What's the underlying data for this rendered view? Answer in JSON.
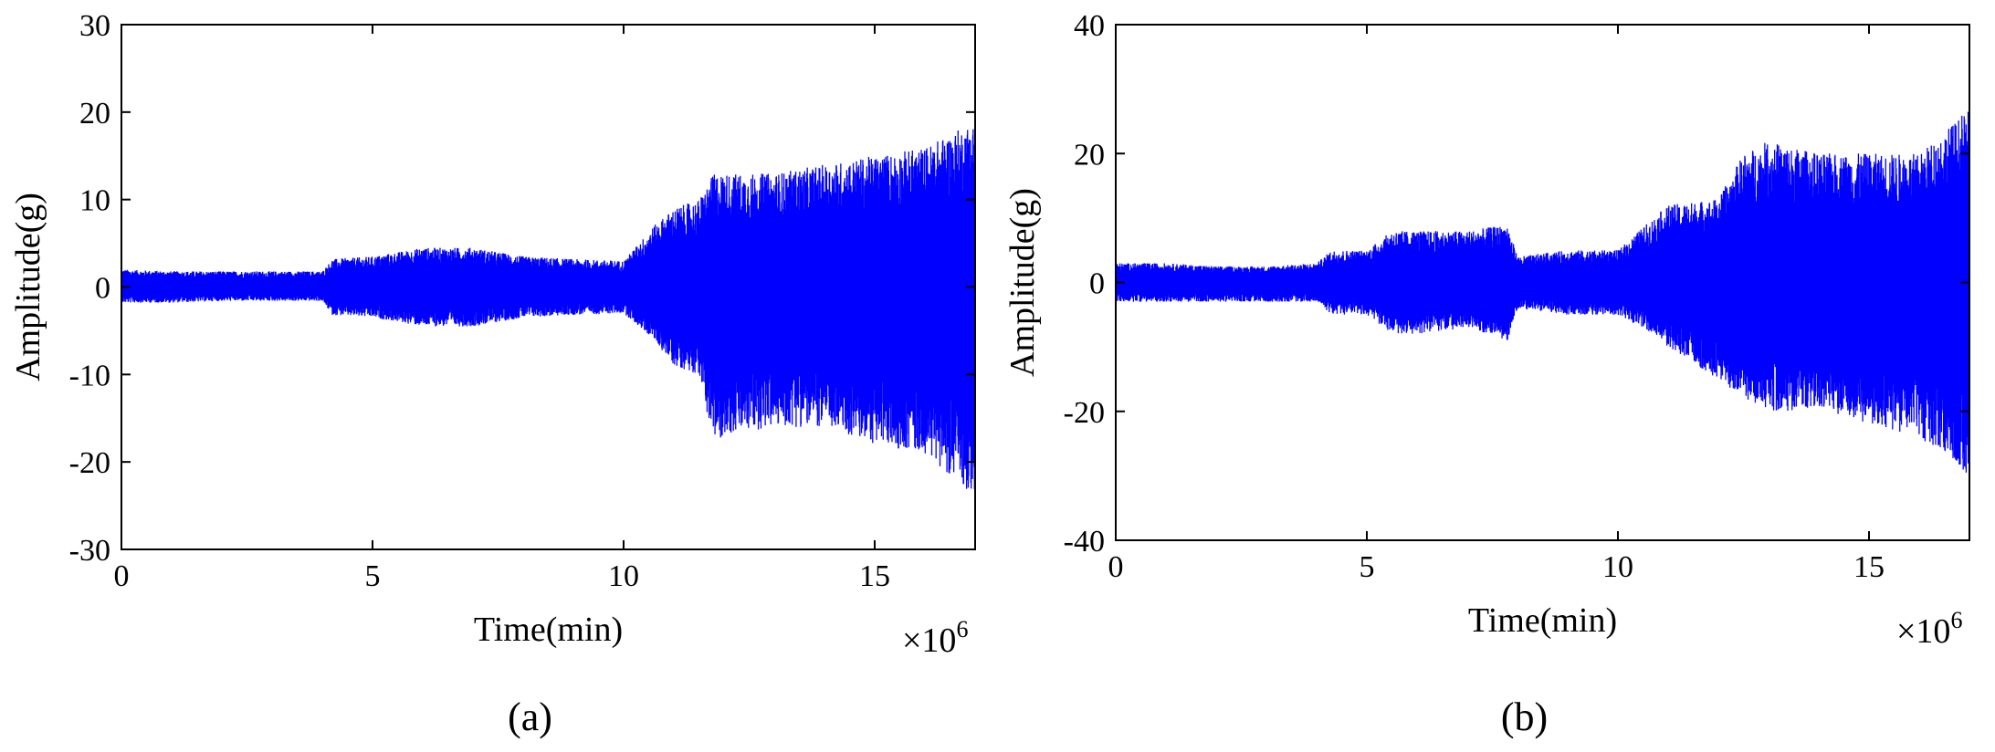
{
  "chart_data": [
    {
      "type": "line",
      "panel_label": "(a)",
      "xlabel": "Time(min)",
      "ylabel": "Amplitude(g)",
      "x_multiplier": "×10",
      "x_multiplier_exp": "6",
      "xlim": [
        0,
        17
      ],
      "ylim": [
        -30,
        30
      ],
      "x_ticks": [
        0,
        5,
        10,
        15
      ],
      "x_tick_labels": [
        "0",
        "5",
        "10",
        "15"
      ],
      "y_ticks": [
        -30,
        -20,
        -10,
        0,
        10,
        20,
        30
      ],
      "y_tick_labels": [
        "-30",
        "-20",
        "-10",
        "0",
        "10",
        "20",
        "30"
      ],
      "series_color": "#0000ff",
      "envelope": {
        "x": [
          0,
          1,
          2,
          3,
          4,
          4.2,
          5,
          6,
          7,
          8,
          9,
          10,
          10.6,
          11,
          11.5,
          11.8,
          12,
          13,
          14,
          15,
          16,
          17
        ],
        "upper": [
          2,
          1.8,
          1.8,
          1.8,
          1.8,
          3.2,
          3.5,
          4.5,
          4.5,
          3.5,
          3.2,
          3,
          7,
          9,
          10,
          13,
          13,
          13,
          14,
          15,
          16,
          19
        ],
        "lower": [
          -1.8,
          -1.8,
          -1.6,
          -1.6,
          -1.6,
          -3.2,
          -3.5,
          -4.5,
          -4.5,
          -3.5,
          -3.2,
          -3,
          -6,
          -9,
          -10,
          -18,
          -17,
          -16,
          -16,
          -18,
          -19,
          -24
        ]
      }
    },
    {
      "type": "line",
      "panel_label": "(b)",
      "xlabel": "Time(min)",
      "ylabel": "Amplitude(g)",
      "x_multiplier": "×10",
      "x_multiplier_exp": "6",
      "xlim": [
        0,
        17
      ],
      "ylim": [
        -40,
        40
      ],
      "x_ticks": [
        0,
        5,
        10,
        15
      ],
      "x_tick_labels": [
        "0",
        "5",
        "10",
        "15"
      ],
      "y_ticks": [
        -40,
        -20,
        0,
        20,
        40
      ],
      "y_tick_labels": [
        "-40",
        "-20",
        "0",
        "20",
        "40"
      ],
      "series_color": "#0000ff",
      "envelope": {
        "x": [
          0,
          1,
          2,
          3,
          4,
          4.3,
          5,
          5.5,
          6,
          7,
          7.8,
          8,
          9,
          10,
          10.7,
          11,
          12,
          12.5,
          13,
          14,
          15,
          16,
          17
        ],
        "upper": [
          3,
          3,
          2.5,
          2.5,
          3,
          5,
          5,
          8,
          8,
          8,
          9,
          4,
          5,
          5,
          10,
          12,
          13,
          20,
          22,
          20,
          20,
          20,
          27
        ],
        "lower": [
          -3,
          -3,
          -3,
          -3,
          -3,
          -5,
          -5,
          -8,
          -8,
          -7,
          -9,
          -4,
          -5,
          -5,
          -8,
          -10,
          -15,
          -18,
          -20,
          -20,
          -22,
          -24,
          -30
        ]
      }
    }
  ]
}
